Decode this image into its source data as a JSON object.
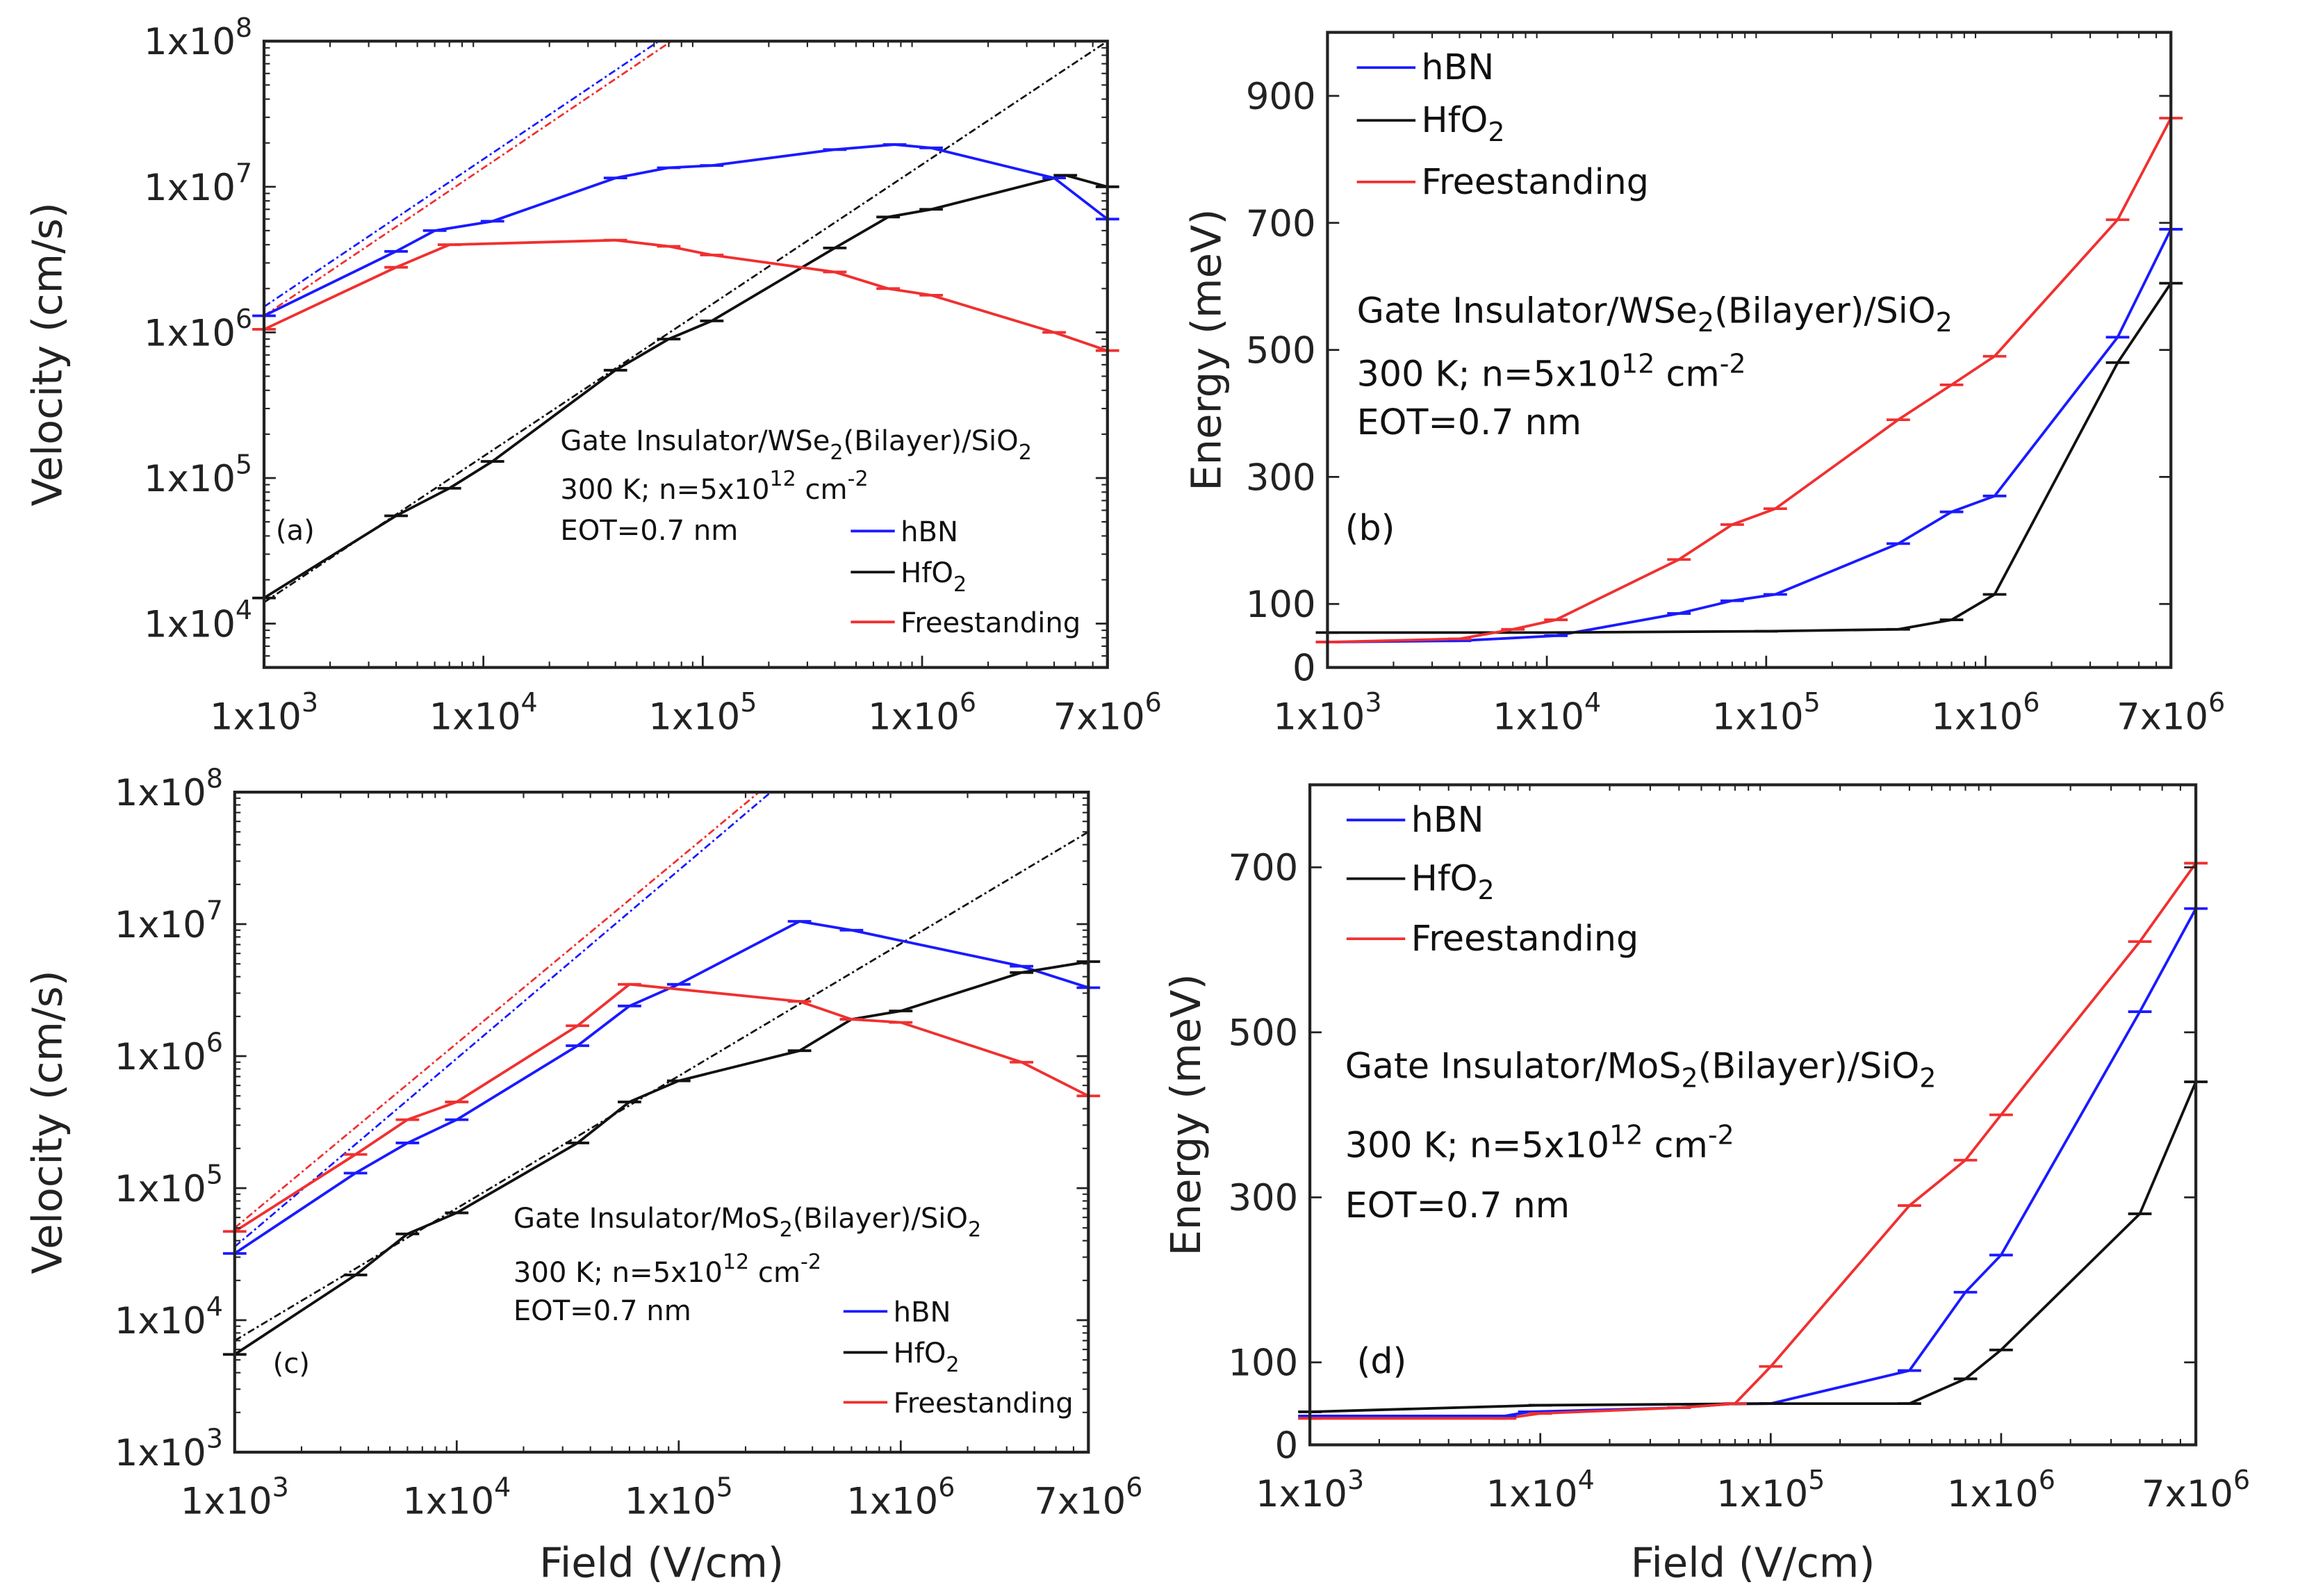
{
  "colors": {
    "hBN": "#1a1aff",
    "HfO2": "#111111",
    "Freestanding": "#f03030"
  },
  "chart_data": [
    {
      "id": "a",
      "type": "line",
      "panel_label": "(a)",
      "xscale": "log",
      "yscale": "log",
      "xlim": [
        1000,
        7000000
      ],
      "ylim": [
        5000,
        100000000
      ],
      "xlabel": "",
      "ylabel": "Velocity (cm/s)",
      "xticks": [
        {
          "v": 1000,
          "b": "1x10",
          "e": "3"
        },
        {
          "v": 10000,
          "b": "1x10",
          "e": "4"
        },
        {
          "v": 100000,
          "b": "1x10",
          "e": "5"
        },
        {
          "v": 1000000,
          "b": "1x10",
          "e": "6"
        },
        {
          "v": 7000000,
          "b": "7x10",
          "e": "6"
        }
      ],
      "yticks": [
        {
          "v": 10000,
          "b": "1x10",
          "e": "4"
        },
        {
          "v": 100000,
          "b": "1x10",
          "e": "5"
        },
        {
          "v": 1000000,
          "b": "1x10",
          "e": "6"
        },
        {
          "v": 10000000,
          "b": "1x10",
          "e": "7"
        },
        {
          "v": 100000000,
          "b": "1x10",
          "e": "8"
        }
      ],
      "annotation": [
        [
          {
            "t": "Gate Insulator/WSe"
          },
          {
            "sub": "2"
          },
          {
            "t": "(Bilayer)/SiO"
          },
          {
            "sub": "2"
          }
        ],
        [
          {
            "t": "300 K; n=5x10"
          },
          {
            "sup": "12"
          },
          {
            "t": " cm"
          },
          {
            "sup": "-2"
          }
        ],
        [
          {
            "t": "EOT=0.7 nm"
          }
        ]
      ],
      "legend": {
        "placement": "bottom-right",
        "entries": [
          [
            {
              "t": "hBN"
            }
          ],
          [
            {
              "t": "HfO"
            },
            {
              "sub": "2"
            }
          ],
          [
            {
              "t": "Freestanding"
            }
          ]
        ]
      },
      "series": [
        {
          "name": "hBN",
          "x": [
            1000,
            4000,
            6000,
            11000,
            40000,
            70000,
            110000,
            400000,
            750000,
            1100000,
            4000000,
            7000000
          ],
          "y": [
            1300000,
            3600000,
            5000000,
            5800000,
            11500000,
            13500000,
            14000000,
            18000000,
            19500000,
            18500000,
            11500000,
            6000000
          ]
        },
        {
          "name": "HfO2",
          "x": [
            1000,
            4000,
            7000,
            11000,
            40000,
            70000,
            110000,
            400000,
            700000,
            1100000,
            4500000,
            7000000
          ],
          "y": [
            15000,
            55000,
            85000,
            130000,
            550000,
            900000,
            1200000,
            3800000,
            6200000,
            7000000,
            12000000,
            10000000
          ]
        },
        {
          "name": "Freestanding",
          "x": [
            1000,
            4000,
            7000,
            40000,
            70000,
            110000,
            400000,
            700000,
            1100000,
            4000000,
            7000000
          ],
          "y": [
            1050000,
            2800000,
            4000000,
            4300000,
            3900000,
            3400000,
            2600000,
            2000000,
            1800000,
            1000000,
            750000
          ]
        }
      ],
      "fits": [
        {
          "name": "hBN",
          "x": [
            1000,
            63000
          ],
          "y": [
            1500000,
            100000000
          ]
        },
        {
          "name": "Freestanding",
          "x": [
            1000,
            72000
          ],
          "y": [
            1300000,
            100000000
          ]
        },
        {
          "name": "HfO2",
          "x": [
            1000,
            7000000
          ],
          "y": [
            14000,
            100000000
          ]
        }
      ]
    },
    {
      "id": "b",
      "type": "line",
      "panel_label": "(b)",
      "xscale": "log",
      "yscale": "linear",
      "xlim": [
        1000,
        7000000
      ],
      "ylim": [
        0,
        1000
      ],
      "xlabel": "",
      "ylabel": "Energy (meV)",
      "xticks": [
        {
          "v": 1000,
          "b": "1x10",
          "e": "3"
        },
        {
          "v": 10000,
          "b": "1x10",
          "e": "4"
        },
        {
          "v": 100000,
          "b": "1x10",
          "e": "5"
        },
        {
          "v": 1000000,
          "b": "1x10",
          "e": "6"
        },
        {
          "v": 7000000,
          "b": "7x10",
          "e": "6"
        }
      ],
      "yticks": [
        {
          "v": 0,
          "b": "0"
        },
        {
          "v": 100,
          "b": "100"
        },
        {
          "v": 300,
          "b": "300"
        },
        {
          "v": 500,
          "b": "500"
        },
        {
          "v": 700,
          "b": "700"
        },
        {
          "v": 900,
          "b": "900"
        }
      ],
      "annotation": [
        [
          {
            "t": "Gate Insulator/WSe"
          },
          {
            "sub": "2"
          },
          {
            "t": "(Bilayer)/SiO"
          },
          {
            "sub": "2"
          }
        ],
        [
          {
            "t": "300 K; n=5x10"
          },
          {
            "sup": "12"
          },
          {
            "t": " cm"
          },
          {
            "sup": "-2"
          }
        ],
        [
          {
            "t": "EOT=0.7 nm"
          }
        ]
      ],
      "legend": {
        "placement": "top-left",
        "entries": [
          [
            {
              "t": "hBN"
            }
          ],
          [
            {
              "t": "HfO"
            },
            {
              "sub": "2"
            }
          ],
          [
            {
              "t": "Freestanding"
            }
          ]
        ]
      },
      "series": [
        {
          "name": "hBN",
          "x": [
            1000,
            4000,
            11000,
            40000,
            70000,
            110000,
            400000,
            700000,
            1100000,
            4000000,
            7000000
          ],
          "y": [
            40,
            42,
            50,
            85,
            105,
            115,
            195,
            245,
            270,
            520,
            690
          ]
        },
        {
          "name": "HfO2",
          "x": [
            1000,
            10000,
            100000,
            400000,
            700000,
            1100000,
            4000000,
            7000000
          ],
          "y": [
            55,
            55,
            57,
            60,
            75,
            115,
            480,
            605
          ]
        },
        {
          "name": "Freestanding",
          "x": [
            1000,
            4000,
            7000,
            11000,
            40000,
            70000,
            110000,
            400000,
            700000,
            1100000,
            4000000,
            7000000
          ],
          "y": [
            40,
            45,
            60,
            75,
            170,
            225,
            250,
            390,
            445,
            490,
            705,
            865
          ]
        }
      ],
      "fits": []
    },
    {
      "id": "c",
      "type": "line",
      "panel_label": "(c)",
      "xscale": "log",
      "yscale": "log",
      "xlim": [
        1000,
        7000000
      ],
      "ylim": [
        1000,
        100000000
      ],
      "xlabel": "Field (V/cm)",
      "ylabel": "Velocity (cm/s)",
      "xticks": [
        {
          "v": 1000,
          "b": "1x10",
          "e": "3"
        },
        {
          "v": 10000,
          "b": "1x10",
          "e": "4"
        },
        {
          "v": 100000,
          "b": "1x10",
          "e": "5"
        },
        {
          "v": 1000000,
          "b": "1x10",
          "e": "6"
        },
        {
          "v": 7000000,
          "b": "7x10",
          "e": "6"
        }
      ],
      "yticks": [
        {
          "v": 1000,
          "b": "1x10",
          "e": "3"
        },
        {
          "v": 10000,
          "b": "1x10",
          "e": "4"
        },
        {
          "v": 100000,
          "b": "1x10",
          "e": "5"
        },
        {
          "v": 1000000,
          "b": "1x10",
          "e": "6"
        },
        {
          "v": 10000000,
          "b": "1x10",
          "e": "7"
        },
        {
          "v": 100000000,
          "b": "1x10",
          "e": "8"
        }
      ],
      "annotation": [
        [
          {
            "t": "Gate Insulator/MoS"
          },
          {
            "sub": "2"
          },
          {
            "t": "(Bilayer)/SiO"
          },
          {
            "sub": "2"
          }
        ],
        [
          {
            "t": "300 K; n=5x10"
          },
          {
            "sup": "12"
          },
          {
            "t": " cm"
          },
          {
            "sup": "-2"
          }
        ],
        [
          {
            "t": "EOT=0.7 nm"
          }
        ]
      ],
      "legend": {
        "placement": "bottom-right",
        "entries": [
          [
            {
              "t": "hBN"
            }
          ],
          [
            {
              "t": "HfO"
            },
            {
              "sub": "2"
            }
          ],
          [
            {
              "t": "Freestanding"
            }
          ]
        ]
      },
      "series": [
        {
          "name": "hBN",
          "x": [
            1000,
            3500,
            6000,
            10000,
            35000,
            60000,
            100000,
            350000,
            600000,
            3500000,
            7000000
          ],
          "y": [
            32000,
            130000,
            220000,
            330000,
            1200000,
            2400000,
            3500000,
            10500000,
            9000000,
            4800000,
            3300000
          ]
        },
        {
          "name": "HfO2",
          "x": [
            1000,
            3500,
            6000,
            10000,
            35000,
            60000,
            100000,
            350000,
            600000,
            1000000,
            3500000,
            7000000
          ],
          "y": [
            5500,
            22000,
            45000,
            65000,
            220000,
            450000,
            650000,
            1100000,
            1900000,
            2200000,
            4300000,
            5200000
          ]
        },
        {
          "name": "Freestanding",
          "x": [
            1000,
            3500,
            6000,
            10000,
            35000,
            60000,
            350000,
            600000,
            1000000,
            3500000,
            7000000
          ],
          "y": [
            47000,
            180000,
            330000,
            450000,
            1700000,
            3500000,
            2600000,
            1900000,
            1800000,
            900000,
            500000
          ]
        }
      ],
      "fits": [
        {
          "name": "Freestanding",
          "x": [
            1000,
            230000
          ],
          "y": [
            50000,
            100000000
          ]
        },
        {
          "name": "hBN",
          "x": [
            1000,
            260000
          ],
          "y": [
            36000,
            100000000
          ]
        },
        {
          "name": "HfO2",
          "x": [
            1000,
            7000000
          ],
          "y": [
            7000,
            50000000
          ]
        }
      ]
    },
    {
      "id": "d",
      "type": "line",
      "panel_label": "(d)",
      "xscale": "log",
      "yscale": "linear",
      "xlim": [
        1000,
        7000000
      ],
      "ylim": [
        0,
        800
      ],
      "xlabel": "Field (V/cm)",
      "ylabel": "Energy (meV)",
      "xticks": [
        {
          "v": 1000,
          "b": "1x10",
          "e": "3"
        },
        {
          "v": 10000,
          "b": "1x10",
          "e": "4"
        },
        {
          "v": 100000,
          "b": "1x10",
          "e": "5"
        },
        {
          "v": 1000000,
          "b": "1x10",
          "e": "6"
        },
        {
          "v": 7000000,
          "b": "7x10",
          "e": "6"
        }
      ],
      "yticks": [
        {
          "v": 0,
          "b": "0"
        },
        {
          "v": 100,
          "b": "100"
        },
        {
          "v": 300,
          "b": "300"
        },
        {
          "v": 500,
          "b": "500"
        },
        {
          "v": 700,
          "b": "700"
        }
      ],
      "annotation": [
        [
          {
            "t": "Gate Insulator/MoS"
          },
          {
            "sub": "2"
          },
          {
            "t": "(Bilayer)/SiO"
          },
          {
            "sub": "2"
          }
        ],
        [
          {
            "t": "300 K; n=5x10"
          },
          {
            "sup": "12"
          },
          {
            "t": " cm"
          },
          {
            "sup": "-2"
          }
        ],
        [
          {
            "t": "EOT=0.7 nm"
          }
        ]
      ],
      "legend": {
        "placement": "top-left",
        "entries": [
          [
            {
              "t": "hBN"
            }
          ],
          [
            {
              "t": "HfO"
            },
            {
              "sub": "2"
            }
          ],
          [
            {
              "t": "Freestanding"
            }
          ]
        ]
      },
      "series": [
        {
          "name": "hBN",
          "x": [
            1000,
            7000,
            9000,
            40000,
            70000,
            100000,
            400000,
            700000,
            1000000,
            4000000,
            7000000
          ],
          "y": [
            35,
            35,
            40,
            45,
            50,
            50,
            90,
            185,
            230,
            525,
            650
          ]
        },
        {
          "name": "HfO2",
          "x": [
            1000,
            10000,
            100000,
            400000,
            700000,
            1000000,
            4000000,
            7000000
          ],
          "y": [
            40,
            48,
            50,
            50,
            80,
            115,
            280,
            440
          ]
        },
        {
          "name": "Freestanding",
          "x": [
            1000,
            7000,
            10000,
            40000,
            70000,
            100000,
            400000,
            700000,
            1000000,
            4000000,
            7000000
          ],
          "y": [
            32,
            32,
            38,
            45,
            50,
            95,
            290,
            345,
            400,
            610,
            705
          ]
        }
      ],
      "fits": []
    }
  ]
}
